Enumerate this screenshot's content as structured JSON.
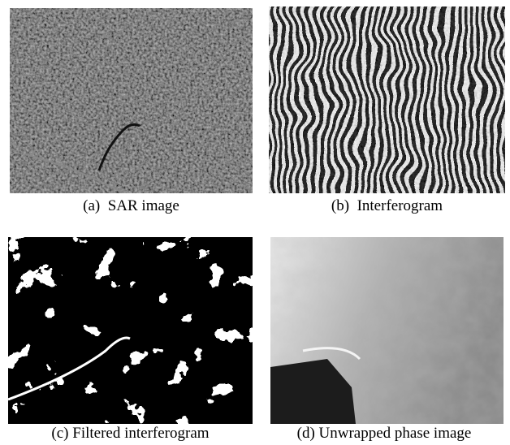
{
  "panels": [
    {
      "caption": "(a)  SAR image"
    },
    {
      "caption": "(b)  Interferogram"
    },
    {
      "caption": "(c) Filtered interferogram"
    },
    {
      "caption": "(d) Unwrapped phase image"
    }
  ]
}
